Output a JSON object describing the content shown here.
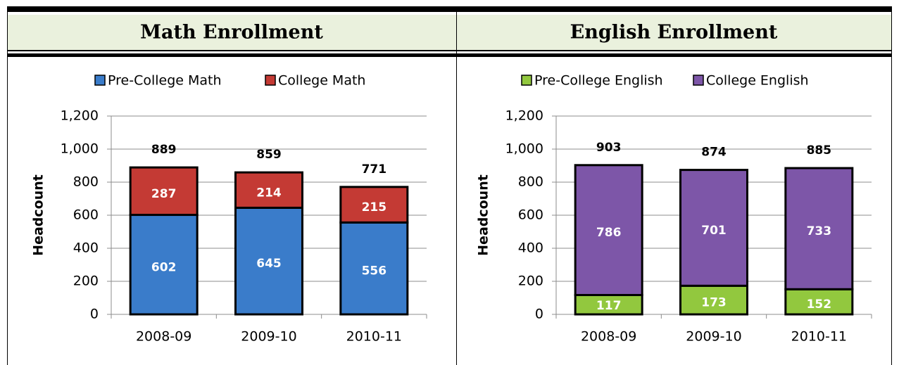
{
  "chart_data": [
    {
      "type": "stacked_bar",
      "title": "Math Enrollment",
      "y_label": "Headcount",
      "categories": [
        "2008-09",
        "2009-10",
        "2010-11"
      ],
      "series": [
        {
          "name": "Pre-College Math",
          "color": "#3a7cca",
          "values": [
            602,
            645,
            556
          ]
        },
        {
          "name": "College Math",
          "color": "#c43a34",
          "values": [
            287,
            214,
            215
          ]
        }
      ],
      "totals": [
        889,
        859,
        771
      ],
      "ylim": [
        0,
        1200
      ],
      "yticks": [
        0,
        200,
        400,
        600,
        800,
        {
          "value": 1000,
          "label": "1,000"
        },
        {
          "value": 1200,
          "label": "1,200"
        }
      ],
      "grid": true,
      "legend": "top"
    },
    {
      "type": "stacked_bar",
      "title": "English Enrollment",
      "y_label": "Headcount",
      "categories": [
        "2008-09",
        "2009-10",
        "2010-11"
      ],
      "series": [
        {
          "name": "Pre-College English",
          "color": "#92c83e",
          "values": [
            117,
            173,
            152
          ]
        },
        {
          "name": "College English",
          "color": "#7d56a8",
          "values": [
            786,
            701,
            733
          ]
        }
      ],
      "totals": [
        903,
        874,
        885
      ],
      "ylim": [
        0,
        1200
      ],
      "yticks": [
        0,
        200,
        400,
        600,
        800,
        {
          "value": 1000,
          "label": "1,000"
        },
        {
          "value": 1200,
          "label": "1,200"
        }
      ],
      "grid": true,
      "legend": "top"
    }
  ]
}
